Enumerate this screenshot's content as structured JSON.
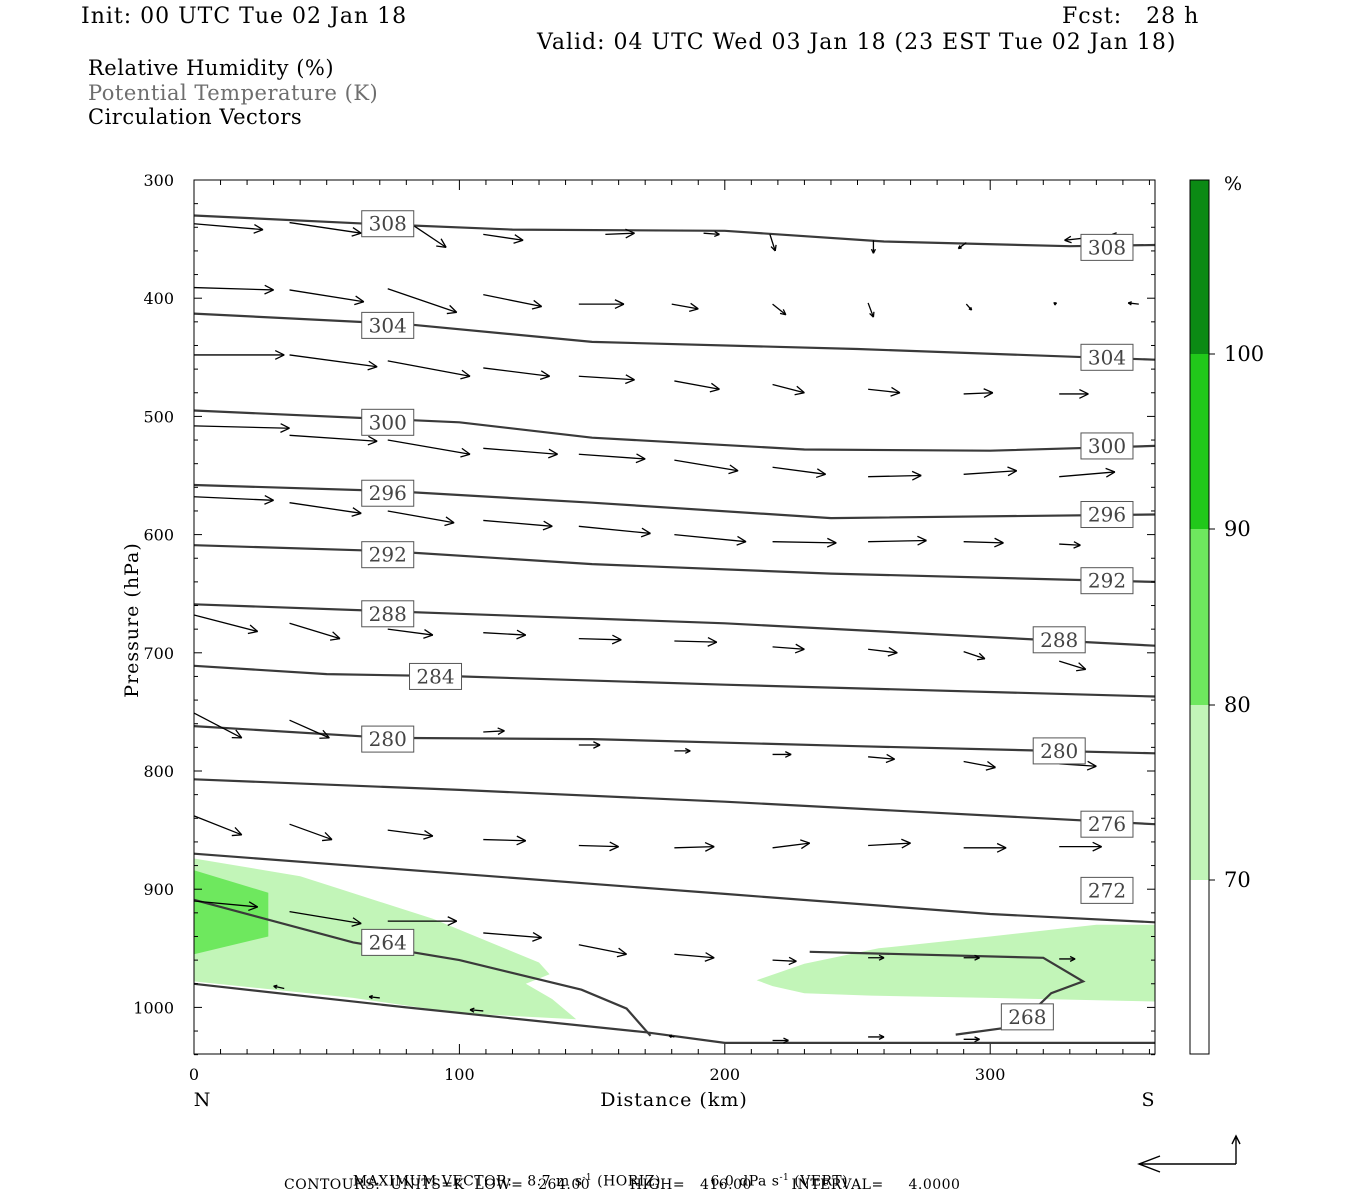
{
  "header": {
    "init": "Init: 00 UTC Tue 02 Jan 18",
    "fcst": "Fcst:   28 h",
    "valid": "Valid: 04 UTC Wed 03 Jan 18 (23 EST Tue 02 Jan 18)"
  },
  "legend": {
    "line1": "Relative Humidity (%)",
    "line2": "Potential Temperature (K)",
    "line3": "Circulation Vectors"
  },
  "footer": {
    "vector_prefix": "MAXIMUM VECTOR:",
    "horiz_value": "8.7 m s",
    "horiz_exp": "-1",
    "horiz_suffix": " (HORIZ)",
    "vert_value": "6.0 dPa s",
    "vert_exp": "-1",
    "vert_suffix": " (VERT)",
    "contours": "CONTOURS:  UNITS=K  LOW=   264.00        HIGH=   416.00        INTERVAL=     4.0000"
  },
  "colors": {
    "contour": "#3a3a3a",
    "rh70": "#c2f5b8",
    "rh80": "#6ee85e",
    "rh90": "#21c81a",
    "rh100": "#0b8a14",
    "rh_blank": "#ffffff"
  },
  "chart_data": {
    "type": "cross-section",
    "xlabel": "Distance (km)",
    "ylabel": "Pressure (hPa)",
    "xlim": [
      0,
      362
    ],
    "ylim": [
      1040,
      300
    ],
    "x_ticks": [
      0,
      100,
      200,
      300
    ],
    "y_ticks": [
      300,
      400,
      500,
      600,
      700,
      800,
      900,
      1000
    ],
    "x_end_labels": {
      "left": "N",
      "right": "S"
    },
    "colorbar": {
      "unit": "%",
      "levels": [
        70,
        80,
        90,
        100
      ],
      "label_values": [
        "70",
        "80",
        "90",
        "100"
      ]
    },
    "theta_contours": [
      {
        "label": "308",
        "points": [
          [
            0,
            330
          ],
          [
            65,
            337
          ],
          [
            120,
            342
          ],
          [
            200,
            343
          ],
          [
            260,
            352
          ],
          [
            330,
            356
          ],
          [
            362,
            355
          ]
        ],
        "label_pos": [
          [
            73,
            337
          ],
          [
            344,
            357
          ]
        ]
      },
      {
        "label": "304",
        "points": [
          [
            0,
            413
          ],
          [
            80,
            422
          ],
          [
            150,
            437
          ],
          [
            250,
            443
          ],
          [
            362,
            452
          ]
        ],
        "label_pos": [
          [
            73,
            423
          ],
          [
            344,
            450
          ]
        ]
      },
      {
        "label": "300",
        "points": [
          [
            0,
            495
          ],
          [
            100,
            505
          ],
          [
            150,
            518
          ],
          [
            230,
            528
          ],
          [
            300,
            529
          ],
          [
            362,
            525
          ]
        ],
        "label_pos": [
          [
            73,
            505
          ],
          [
            344,
            525
          ]
        ]
      },
      {
        "label": "296",
        "points": [
          [
            0,
            558
          ],
          [
            73,
            563
          ],
          [
            150,
            573
          ],
          [
            240,
            586
          ],
          [
            362,
            583
          ]
        ],
        "label_pos": [
          [
            73,
            565
          ],
          [
            344,
            583
          ]
        ]
      },
      {
        "label": "292",
        "points": [
          [
            0,
            609
          ],
          [
            73,
            614
          ],
          [
            150,
            625
          ],
          [
            240,
            633
          ],
          [
            362,
            640
          ]
        ],
        "label_pos": [
          [
            73,
            617
          ],
          [
            344,
            639
          ]
        ]
      },
      {
        "label": "288",
        "points": [
          [
            0,
            659
          ],
          [
            100,
            667
          ],
          [
            200,
            675
          ],
          [
            362,
            694
          ]
        ],
        "label_pos": [
          [
            73,
            667
          ],
          [
            326,
            689
          ]
        ]
      },
      {
        "label": "284",
        "points": [
          [
            0,
            711
          ],
          [
            50,
            718
          ],
          [
            100,
            720
          ],
          [
            200,
            727
          ],
          [
            362,
            737
          ]
        ],
        "label_pos": [
          [
            91,
            720
          ]
        ]
      },
      {
        "label": "280",
        "points": [
          [
            0,
            762
          ],
          [
            73,
            772
          ],
          [
            150,
            773
          ],
          [
            250,
            779
          ],
          [
            362,
            785
          ]
        ],
        "label_pos": [
          [
            73,
            773
          ],
          [
            326,
            783
          ]
        ]
      },
      {
        "label": "276",
        "points": [
          [
            0,
            807
          ],
          [
            100,
            816
          ],
          [
            200,
            826
          ],
          [
            362,
            845
          ]
        ],
        "label_pos": [
          [
            344,
            845
          ]
        ]
      },
      {
        "label": "272",
        "points": [
          [
            0,
            870
          ],
          [
            100,
            887
          ],
          [
            200,
            904
          ],
          [
            300,
            921
          ],
          [
            362,
            928
          ]
        ],
        "label_pos": [
          [
            344,
            901
          ]
        ]
      },
      {
        "label": "264",
        "points": [
          [
            0,
            909
          ],
          [
            60,
            945
          ],
          [
            100,
            960
          ],
          [
            146,
            985
          ],
          [
            163,
            1001
          ],
          [
            172,
            1024
          ]
        ],
        "label_pos": [
          [
            73,
            945
          ]
        ]
      },
      {
        "label": "268",
        "points": [
          [
            0,
            980
          ],
          [
            80,
            1000
          ],
          [
            170,
            1021
          ],
          [
            200,
            1030
          ],
          [
            362,
            1030
          ]
        ],
        "label_pos": [
          [
            314,
            1008
          ]
        ]
      },
      {
        "label": "",
        "points": [
          [
            232,
            953
          ],
          [
            320,
            958
          ],
          [
            335,
            978
          ],
          [
            323,
            988
          ],
          [
            310,
            1016
          ],
          [
            287,
            1023
          ]
        ],
        "label_pos": []
      }
    ],
    "rh_fill": [
      {
        "level": "70-80",
        "points": [
          [
            0,
            874
          ],
          [
            40,
            889
          ],
          [
            90,
            925
          ],
          [
            130,
            962
          ],
          [
            134,
            972
          ],
          [
            125,
            980
          ],
          [
            135,
            993
          ],
          [
            144,
            1010
          ],
          [
            100,
            1005
          ],
          [
            60,
            992
          ],
          [
            0,
            978
          ]
        ]
      },
      {
        "level": "70-80",
        "points": [
          [
            212,
            977
          ],
          [
            230,
            963
          ],
          [
            258,
            950
          ],
          [
            300,
            940
          ],
          [
            340,
            930
          ],
          [
            362,
            930
          ],
          [
            362,
            995
          ],
          [
            300,
            992
          ],
          [
            255,
            990
          ],
          [
            230,
            988
          ],
          [
            218,
            982
          ]
        ]
      },
      {
        "level": "80-90",
        "points": [
          [
            0,
            884
          ],
          [
            28,
            903
          ],
          [
            28,
            940
          ],
          [
            0,
            955
          ]
        ]
      }
    ],
    "vectors": [
      [
        0,
        337,
        26,
        342
      ],
      [
        36,
        336,
        63,
        345
      ],
      [
        83,
        339,
        95,
        357
      ],
      [
        109,
        346,
        124,
        351
      ],
      [
        155,
        346,
        166,
        345
      ],
      [
        192,
        345,
        198,
        346
      ],
      [
        217,
        346,
        219,
        360
      ],
      [
        256,
        351,
        256,
        362
      ],
      [
        291,
        353,
        288,
        358
      ],
      [
        336,
        349,
        328,
        351
      ],
      [
        351,
        347,
        346,
        346
      ],
      [
        0,
        391,
        30,
        393
      ],
      [
        36,
        393,
        64,
        403
      ],
      [
        73,
        392,
        99,
        412
      ],
      [
        109,
        397,
        131,
        407
      ],
      [
        145,
        405,
        162,
        405
      ],
      [
        180,
        405,
        190,
        409
      ],
      [
        218,
        405,
        223,
        414
      ],
      [
        254,
        404,
        256,
        416
      ],
      [
        291,
        405,
        293,
        410
      ],
      [
        324,
        405,
        325,
        404
      ],
      [
        356,
        405,
        352,
        404
      ],
      [
        0,
        448,
        34,
        448
      ],
      [
        36,
        448,
        69,
        458
      ],
      [
        73,
        453,
        104,
        466
      ],
      [
        109,
        459,
        134,
        466
      ],
      [
        145,
        466,
        166,
        469
      ],
      [
        181,
        470,
        198,
        477
      ],
      [
        218,
        473,
        230,
        480
      ],
      [
        254,
        477,
        266,
        480
      ],
      [
        290,
        481,
        301,
        480
      ],
      [
        326,
        481,
        337,
        481
      ],
      [
        0,
        508,
        36,
        510
      ],
      [
        36,
        516,
        69,
        521
      ],
      [
        73,
        520,
        104,
        532
      ],
      [
        109,
        527,
        137,
        532
      ],
      [
        145,
        532,
        170,
        536
      ],
      [
        181,
        537,
        205,
        546
      ],
      [
        218,
        543,
        238,
        549
      ],
      [
        254,
        551,
        274,
        550
      ],
      [
        290,
        549,
        310,
        546
      ],
      [
        326,
        551,
        347,
        547
      ],
      [
        0,
        568,
        30,
        571
      ],
      [
        36,
        573,
        63,
        582
      ],
      [
        73,
        580,
        98,
        590
      ],
      [
        109,
        588,
        135,
        593
      ],
      [
        145,
        593,
        172,
        599
      ],
      [
        181,
        600,
        208,
        606
      ],
      [
        218,
        606,
        242,
        607
      ],
      [
        254,
        606,
        276,
        605
      ],
      [
        290,
        606,
        305,
        607
      ],
      [
        326,
        608,
        334,
        609
      ],
      [
        0,
        668,
        24,
        682
      ],
      [
        36,
        675,
        55,
        688
      ],
      [
        73,
        680,
        90,
        685
      ],
      [
        109,
        683,
        125,
        685
      ],
      [
        145,
        688,
        161,
        689
      ],
      [
        181,
        690,
        197,
        691
      ],
      [
        218,
        695,
        230,
        697
      ],
      [
        254,
        697,
        265,
        700
      ],
      [
        290,
        699,
        298,
        705
      ],
      [
        326,
        707,
        336,
        714
      ],
      [
        0,
        751,
        18,
        772
      ],
      [
        36,
        757,
        51,
        772
      ],
      [
        109,
        767,
        117,
        766
      ],
      [
        145,
        778,
        153,
        778
      ],
      [
        181,
        783,
        187,
        783
      ],
      [
        218,
        786,
        225,
        786
      ],
      [
        254,
        788,
        264,
        790
      ],
      [
        290,
        792,
        302,
        797
      ],
      [
        326,
        794,
        340,
        796
      ],
      [
        0,
        838,
        18,
        854
      ],
      [
        36,
        845,
        52,
        858
      ],
      [
        73,
        850,
        90,
        855
      ],
      [
        109,
        858,
        125,
        859
      ],
      [
        145,
        863,
        160,
        864
      ],
      [
        181,
        865,
        196,
        864
      ],
      [
        218,
        865,
        232,
        861
      ],
      [
        254,
        863,
        270,
        861
      ],
      [
        290,
        865,
        306,
        865
      ],
      [
        326,
        864,
        342,
        864
      ],
      [
        0,
        910,
        24,
        915
      ],
      [
        36,
        919,
        63,
        929
      ],
      [
        73,
        927,
        99,
        927
      ],
      [
        109,
        937,
        131,
        941
      ],
      [
        145,
        947,
        163,
        955
      ],
      [
        181,
        955,
        196,
        958
      ],
      [
        218,
        960,
        227,
        961
      ],
      [
        254,
        958,
        260,
        958
      ],
      [
        290,
        958,
        296,
        958
      ],
      [
        326,
        959,
        332,
        959
      ],
      [
        34,
        984,
        30,
        982
      ],
      [
        70,
        992,
        66,
        991
      ],
      [
        109,
        1003,
        104,
        1002
      ],
      [
        181,
        1025,
        179,
        1024
      ],
      [
        218,
        1028,
        224,
        1028
      ],
      [
        254,
        1025,
        260,
        1025
      ],
      [
        290,
        1027,
        296,
        1027
      ]
    ]
  }
}
